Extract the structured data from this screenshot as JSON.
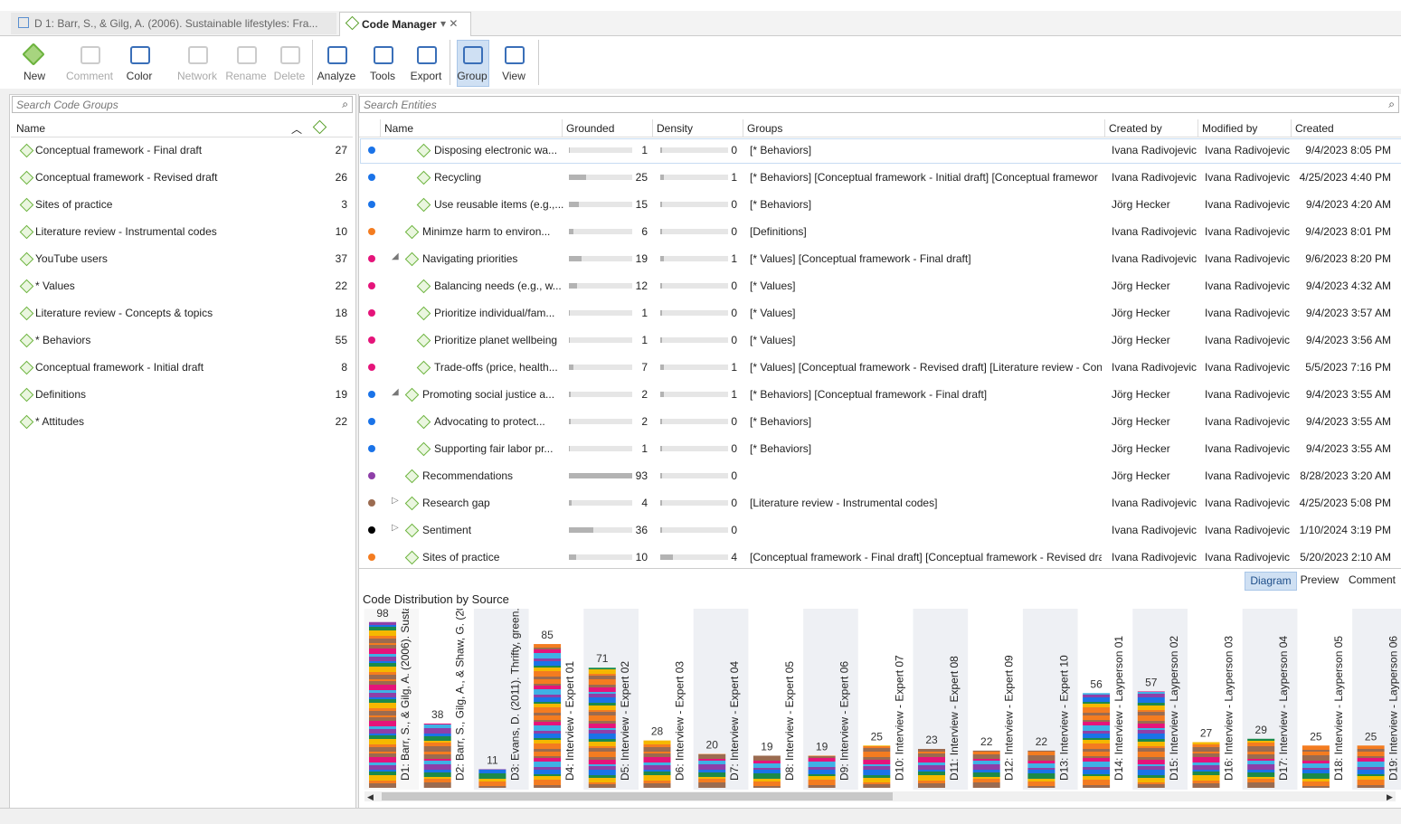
{
  "tabs": [
    "D 1: Barr, S., & Gilg, A. (2006). Sustainable lifestyles: Fra...",
    "Code Manager"
  ],
  "toolbar": [
    {
      "label": "New"
    },
    {
      "label": "Comment",
      "disabled": true
    },
    {
      "label": "Color"
    },
    {
      "label": "Network",
      "disabled": true
    },
    {
      "label": "Rename",
      "disabled": true
    },
    {
      "label": "Delete",
      "disabled": true
    },
    {
      "label": "Analyze"
    },
    {
      "label": "Tools"
    },
    {
      "label": "Export"
    },
    {
      "label": "Group",
      "selected": true
    },
    {
      "label": "View"
    }
  ],
  "code_groups": {
    "search_placeholder": "Search Code Groups",
    "header": "Name",
    "rows": [
      {
        "name": "Conceptual framework - Final draft",
        "count": 27
      },
      {
        "name": "Conceptual framework - Revised draft",
        "count": 26
      },
      {
        "name": "Sites of practice",
        "count": 3
      },
      {
        "name": "Literature review - Instrumental codes",
        "count": 10
      },
      {
        "name": "YouTube users",
        "count": 37
      },
      {
        "name": "* Values",
        "count": 22
      },
      {
        "name": "Literature review - Concepts & topics",
        "count": 18
      },
      {
        "name": "* Behaviors",
        "count": 55
      },
      {
        "name": "Conceptual framework - Initial draft",
        "count": 8
      },
      {
        "name": "Definitions",
        "count": 19
      },
      {
        "name": "* Attitudes",
        "count": 22
      }
    ]
  },
  "entities": {
    "search_placeholder": "Search Entities",
    "columns": [
      "Name",
      "Grounded",
      "Density",
      "Groups",
      "Created by",
      "Modified by",
      "Created"
    ],
    "rows": [
      {
        "color": "#1a73e8",
        "level": 2,
        "name": "Disposing electronic wa...",
        "grounded": 1,
        "density": 0,
        "groups": "[* Behaviors]",
        "created_by": "Ivana Radivojevic",
        "modified_by": "Ivana Radivojevic",
        "created": "9/4/2023 8:05 PM"
      },
      {
        "color": "#1a73e8",
        "level": 2,
        "name": "Recycling",
        "grounded": 25,
        "density": 1,
        "groups": "[* Behaviors] [Conceptual framework - Initial draft] [Conceptual framewor",
        "created_by": "Ivana Radivojevic",
        "modified_by": "Ivana Radivojevic",
        "created": "4/25/2023 4:40 PM"
      },
      {
        "color": "#1a73e8",
        "level": 2,
        "name": "Use reusable items (e.g.,...",
        "grounded": 15,
        "density": 0,
        "groups": "[* Behaviors]",
        "created_by": "Jörg Hecker",
        "modified_by": "Ivana Radivojevic",
        "created": "9/4/2023 4:20 AM"
      },
      {
        "color": "#f47c20",
        "level": 1,
        "name": "Minimze harm to environ...",
        "grounded": 6,
        "density": 0,
        "groups": "[Definitions]",
        "created_by": "Ivana Radivojevic",
        "modified_by": "Ivana Radivojevic",
        "created": "9/4/2023 8:01 PM"
      },
      {
        "color": "#e5147a",
        "level": 1,
        "expanded": true,
        "name": "Navigating priorities",
        "grounded": 19,
        "density": 1,
        "groups": "[* Values] [Conceptual framework - Final draft]",
        "created_by": "Ivana Radivojevic",
        "modified_by": "Ivana Radivojevic",
        "created": "9/6/2023 8:20 PM"
      },
      {
        "color": "#e5147a",
        "level": 2,
        "name": "Balancing needs (e.g., w...",
        "grounded": 12,
        "density": 0,
        "groups": "[* Values]",
        "created_by": "Jörg Hecker",
        "modified_by": "Ivana Radivojevic",
        "created": "9/4/2023 4:32 AM"
      },
      {
        "color": "#e5147a",
        "level": 2,
        "name": "Prioritize individual/fam...",
        "grounded": 1,
        "density": 0,
        "groups": "[* Values]",
        "created_by": "Jörg Hecker",
        "modified_by": "Ivana Radivojevic",
        "created": "9/4/2023 3:57 AM"
      },
      {
        "color": "#e5147a",
        "level": 2,
        "name": "Prioritize planet wellbeing",
        "grounded": 1,
        "density": 0,
        "groups": "[* Values]",
        "created_by": "Jörg Hecker",
        "modified_by": "Ivana Radivojevic",
        "created": "9/4/2023 3:56 AM"
      },
      {
        "color": "#e5147a",
        "level": 2,
        "name": "Trade-offs (price, health...",
        "grounded": 7,
        "density": 1,
        "groups": "[* Values] [Conceptual framework - Revised draft] [Literature review - Con",
        "created_by": "Ivana Radivojevic",
        "modified_by": "Ivana Radivojevic",
        "created": "5/5/2023 7:16 PM"
      },
      {
        "color": "#1a73e8",
        "level": 1,
        "expanded": true,
        "name": "Promoting social justice a...",
        "grounded": 2,
        "density": 1,
        "groups": "[* Behaviors] [Conceptual framework - Final draft]",
        "created_by": "Jörg Hecker",
        "modified_by": "Ivana Radivojevic",
        "created": "9/4/2023 3:55 AM"
      },
      {
        "color": "#1a73e8",
        "level": 2,
        "name": "Advocating to protect...",
        "grounded": 2,
        "density": 0,
        "groups": "[* Behaviors]",
        "created_by": "Jörg Hecker",
        "modified_by": "Ivana Radivojevic",
        "created": "9/4/2023 3:55 AM"
      },
      {
        "color": "#1a73e8",
        "level": 2,
        "name": "Supporting fair labor pr...",
        "grounded": 1,
        "density": 0,
        "groups": "[* Behaviors]",
        "created_by": "Jörg Hecker",
        "modified_by": "Ivana Radivojevic",
        "created": "9/4/2023 3:55 AM"
      },
      {
        "color": "#8e3fa8",
        "level": 1,
        "name": "Recommendations",
        "grounded": 93,
        "density": 0,
        "groups": null,
        "created_by": "Jörg Hecker",
        "modified_by": "Ivana Radivojevic",
        "created": "8/28/2023 3:20 AM"
      },
      {
        "color": "#9b6b50",
        "level": 1,
        "expanded": false,
        "name": "Research gap",
        "grounded": 4,
        "density": 0,
        "groups": "[Literature review - Instrumental codes]",
        "created_by": "Ivana Radivojevic",
        "modified_by": "Ivana Radivojevic",
        "created": "4/25/2023 5:08 PM"
      },
      {
        "color": "#000000",
        "level": 1,
        "expanded": false,
        "name": "Sentiment",
        "grounded": 36,
        "density": 0,
        "groups": null,
        "created_by": "Ivana Radivojevic",
        "modified_by": "Ivana Radivojevic",
        "created": "1/10/2024 3:19 PM"
      },
      {
        "color": "#f47c20",
        "level": 1,
        "name": "Sites of practice",
        "grounded": 10,
        "density": 4,
        "groups": "[Conceptual framework - Final draft] [Conceptual framework - Revised dra",
        "created_by": "Ivana Radivojevic",
        "modified_by": "Ivana Radivojevic",
        "created": "5/20/2023 2:10 AM"
      }
    ]
  },
  "bottom_tabs": [
    "Diagram",
    "Preview",
    "Comment"
  ],
  "chart_data": {
    "type": "bar",
    "title": "Code Distribution by Source",
    "categories": [
      "D1: Barr, S., & Gilg, A. (2006). Susta...",
      "D2: Barr, S., Gilg, A., & Shaw, G. (20...",
      "D3: Evans, D. (2011). Thrifty, green...",
      "D4: Interview - Expert 01",
      "D5: Interview - Expert 02",
      "D6: Interview - Expert 03",
      "D7: Interview - Expert 04",
      "D8: Interview - Expert 05",
      "D9: Interview - Expert 06",
      "D10: Interview - Expert 07",
      "D11: Interview - Expert 08",
      "D12: Interview - Expert 09",
      "D13: Interview - Expert 10",
      "D14: Interview - Layperson 01",
      "D15: Interview - Layperson 02",
      "D16: Interview - Layperson 03",
      "D17: Interview - Layperson 04",
      "D18: Interview - Layperson 05",
      "D19: Interview - Layperson 06"
    ],
    "values": [
      98,
      38,
      11,
      85,
      71,
      28,
      20,
      19,
      19,
      25,
      23,
      22,
      22,
      56,
      57,
      27,
      29,
      25,
      25
    ]
  }
}
